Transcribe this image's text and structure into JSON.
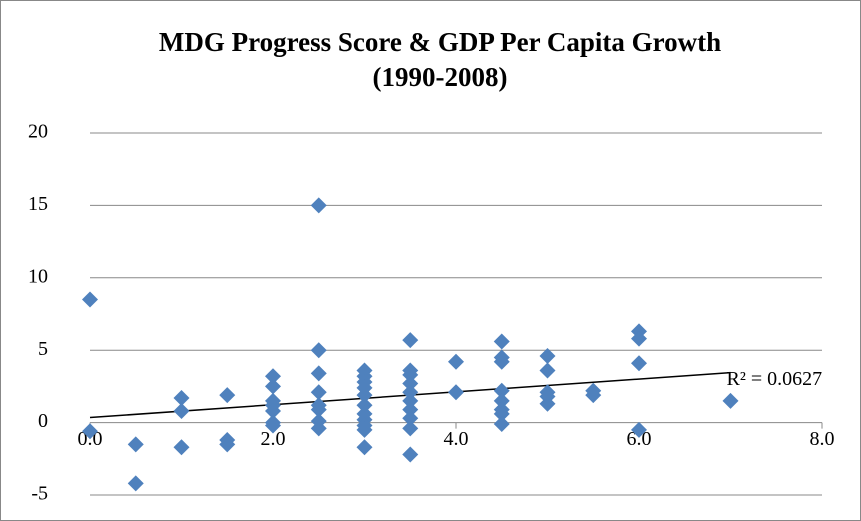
{
  "chart_data": {
    "type": "scatter",
    "title": [
      "MDG Progress Score & GDP Per Capita Growth",
      "(1990-2008)"
    ],
    "series": [
      {
        "color": "#4f81bd",
        "x": [
          0,
          0,
          0.5,
          0.5,
          1,
          1,
          1,
          1.5,
          1.5,
          1.5,
          2,
          2,
          2,
          2,
          2,
          2,
          2,
          2.5,
          2.5,
          2.5,
          2.5,
          2.5,
          2.5,
          2.5,
          2.5,
          3,
          3,
          3,
          3,
          3,
          3,
          3,
          3,
          3,
          3,
          3,
          3.5,
          3.5,
          3.5,
          3.5,
          3.5,
          3.5,
          3.5,
          3.5,
          3.5,
          3.5,
          4,
          4,
          4.5,
          4.5,
          4.5,
          4.5,
          4.5,
          4.5,
          4.5,
          4.5,
          5,
          5,
          5,
          5,
          5,
          5.5,
          5.5,
          6,
          6,
          6,
          6,
          7
        ],
        "values": [
          8.5,
          -0.6,
          -1.5,
          -4.2,
          1.7,
          0.8,
          -1.7,
          1.9,
          -1.2,
          -1.5,
          3.2,
          2.5,
          1.5,
          1.2,
          0.8,
          0,
          -0.2,
          15,
          5.0,
          3.4,
          2.1,
          1.2,
          0.9,
          0.1,
          -0.4,
          3.6,
          3.2,
          2.8,
          2.4,
          1.9,
          1.2,
          0.6,
          0.2,
          -0.2,
          -0.5,
          -1.7,
          5.7,
          3.6,
          3.3,
          2.7,
          2.1,
          1.5,
          0.9,
          0.3,
          -0.4,
          -2.2,
          4.2,
          2.1,
          5.6,
          4.5,
          4.2,
          2.2,
          1.5,
          0.9,
          0.6,
          -0.1,
          4.6,
          3.6,
          2.1,
          1.8,
          1.3,
          2.2,
          1.9,
          6.3,
          5.8,
          4.1,
          -0.5,
          1.5
        ]
      }
    ],
    "trendline": {
      "color": "#000000",
      "x": [
        0,
        7
      ],
      "values": [
        0.35,
        3.45
      ],
      "label": "R² = 0.0627"
    },
    "xlim": [
      0,
      8
    ],
    "ylim": [
      -5,
      20
    ],
    "xticks": [
      {
        "value": 0,
        "label": "0.0"
      },
      {
        "value": 2,
        "label": "2.0"
      },
      {
        "value": 4,
        "label": "4.0"
      },
      {
        "value": 6,
        "label": "6.0"
      },
      {
        "value": 8,
        "label": "8.0"
      }
    ],
    "yticks": [
      -5,
      0,
      5,
      10,
      15,
      20
    ],
    "grid": true
  }
}
